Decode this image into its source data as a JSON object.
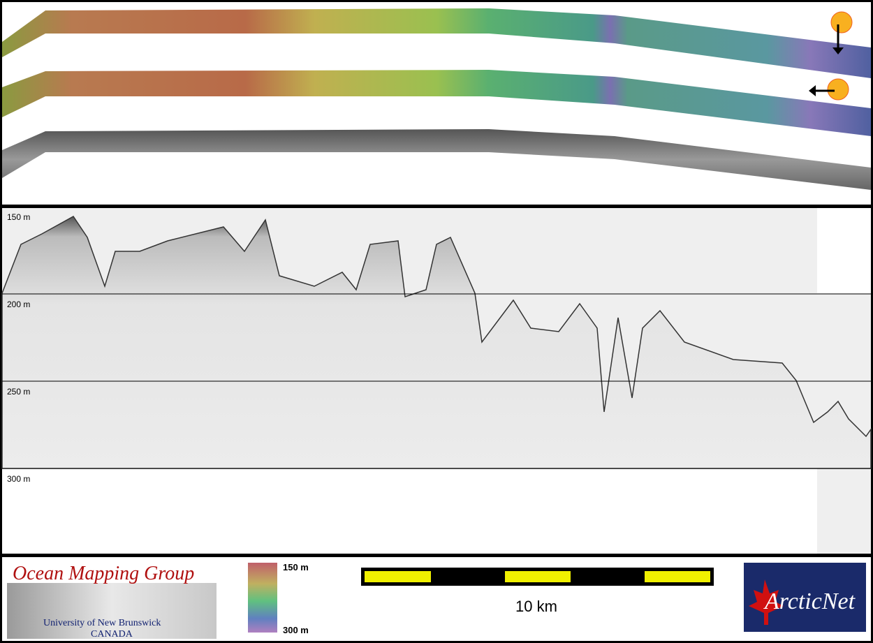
{
  "depth_labels": [
    "150 m",
    "200 m",
    "250 m",
    "300 m"
  ],
  "colorbar": {
    "top_label": "150 m",
    "bottom_label": "300 m"
  },
  "scale_bar": {
    "label": "10 km"
  },
  "logos": {
    "ocean_mapping_group": {
      "title": "Ocean Mapping Group",
      "subtitle": "University of New Brunswick",
      "country": "CANADA"
    },
    "arcticnet": "ArcticNet"
  }
}
